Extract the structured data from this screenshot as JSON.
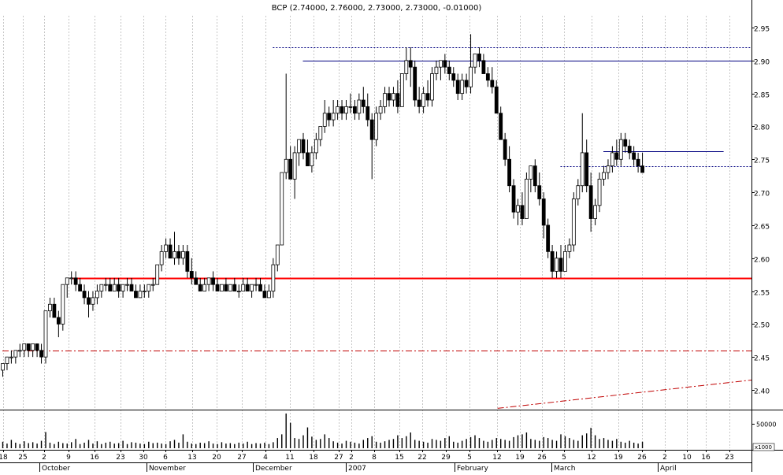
{
  "chart_data": {
    "type": "candlestick",
    "title": "BCP (2.74000, 2.76000, 2.73000, 2.73000, -0.01000)",
    "price_axis": {
      "ylim": [
        2.365,
        2.99
      ],
      "ticks": [
        "2.40",
        "2.45",
        "2.50",
        "2.55",
        "2.60",
        "2.65",
        "2.70",
        "2.75",
        "2.80",
        "2.85",
        "2.90",
        "2.95"
      ]
    },
    "volume_axis": {
      "tick_label": "50000",
      "scale_label": "x1000",
      "max": 80000
    },
    "date_axis": {
      "day_labels": [
        "18",
        "25",
        "2",
        "9",
        "16",
        "23",
        "30",
        "6",
        "13",
        "20",
        "27",
        "4",
        "11",
        "18",
        "27",
        "2",
        "8",
        "15",
        "22",
        "29",
        "5",
        "12",
        "19",
        "26",
        "5",
        "12",
        "19",
        "26",
        "2",
        "10",
        "16",
        "23"
      ],
      "month_labels": [
        "October",
        "November",
        "December",
        "2007",
        "February",
        "March",
        "April"
      ]
    },
    "candles": [
      [
        2.43,
        2.44,
        2.42,
        2.44
      ],
      [
        2.44,
        2.45,
        2.43,
        2.45
      ],
      [
        2.45,
        2.46,
        2.44,
        2.45
      ],
      [
        2.45,
        2.46,
        2.44,
        2.46
      ],
      [
        2.46,
        2.47,
        2.45,
        2.46
      ],
      [
        2.46,
        2.47,
        2.45,
        2.47
      ],
      [
        2.47,
        2.47,
        2.45,
        2.46
      ],
      [
        2.46,
        2.47,
        2.45,
        2.47
      ],
      [
        2.47,
        2.47,
        2.45,
        2.46
      ],
      [
        2.46,
        2.47,
        2.44,
        2.45
      ],
      [
        2.45,
        2.52,
        2.44,
        2.52
      ],
      [
        2.52,
        2.54,
        2.51,
        2.53
      ],
      [
        2.53,
        2.54,
        2.51,
        2.51
      ],
      [
        2.51,
        2.52,
        2.48,
        2.5
      ],
      [
        2.5,
        2.56,
        2.49,
        2.56
      ],
      [
        2.56,
        2.57,
        2.54,
        2.57
      ],
      [
        2.57,
        2.58,
        2.56,
        2.57
      ],
      [
        2.57,
        2.58,
        2.55,
        2.56
      ],
      [
        2.56,
        2.57,
        2.55,
        2.55
      ],
      [
        2.55,
        2.56,
        2.53,
        2.54
      ],
      [
        2.54,
        2.55,
        2.51,
        2.53
      ],
      [
        2.53,
        2.55,
        2.52,
        2.54
      ],
      [
        2.54,
        2.56,
        2.53,
        2.55
      ],
      [
        2.55,
        2.56,
        2.54,
        2.56
      ],
      [
        2.56,
        2.57,
        2.55,
        2.56
      ],
      [
        2.56,
        2.57,
        2.55,
        2.55
      ],
      [
        2.55,
        2.57,
        2.55,
        2.56
      ],
      [
        2.56,
        2.57,
        2.54,
        2.55
      ],
      [
        2.55,
        2.56,
        2.54,
        2.56
      ],
      [
        2.56,
        2.57,
        2.55,
        2.56
      ],
      [
        2.56,
        2.57,
        2.55,
        2.55
      ],
      [
        2.55,
        2.56,
        2.54,
        2.54
      ],
      [
        2.54,
        2.56,
        2.54,
        2.55
      ],
      [
        2.55,
        2.56,
        2.54,
        2.55
      ],
      [
        2.55,
        2.56,
        2.54,
        2.56
      ],
      [
        2.56,
        2.57,
        2.55,
        2.56
      ],
      [
        2.56,
        2.59,
        2.56,
        2.59
      ],
      [
        2.59,
        2.62,
        2.58,
        2.61
      ],
      [
        2.61,
        2.63,
        2.6,
        2.62
      ],
      [
        2.62,
        2.63,
        2.6,
        2.6
      ],
      [
        2.6,
        2.64,
        2.59,
        2.61
      ],
      [
        2.61,
        2.62,
        2.59,
        2.6
      ],
      [
        2.6,
        2.62,
        2.59,
        2.61
      ],
      [
        2.61,
        2.62,
        2.57,
        2.58
      ],
      [
        2.58,
        2.6,
        2.56,
        2.57
      ],
      [
        2.57,
        2.58,
        2.56,
        2.56
      ],
      [
        2.56,
        2.57,
        2.55,
        2.55
      ],
      [
        2.55,
        2.57,
        2.55,
        2.56
      ],
      [
        2.56,
        2.57,
        2.55,
        2.57
      ],
      [
        2.57,
        2.58,
        2.55,
        2.56
      ],
      [
        2.56,
        2.57,
        2.55,
        2.55
      ],
      [
        2.55,
        2.56,
        2.55,
        2.56
      ],
      [
        2.56,
        2.57,
        2.55,
        2.55
      ],
      [
        2.55,
        2.56,
        2.55,
        2.56
      ],
      [
        2.56,
        2.57,
        2.55,
        2.55
      ],
      [
        2.55,
        2.56,
        2.54,
        2.55
      ],
      [
        2.55,
        2.57,
        2.55,
        2.56
      ],
      [
        2.56,
        2.57,
        2.55,
        2.55
      ],
      [
        2.55,
        2.56,
        2.54,
        2.56
      ],
      [
        2.56,
        2.57,
        2.55,
        2.56
      ],
      [
        2.56,
        2.57,
        2.55,
        2.55
      ],
      [
        2.55,
        2.56,
        2.54,
        2.54
      ],
      [
        2.54,
        2.56,
        2.54,
        2.55
      ],
      [
        2.55,
        2.6,
        2.54,
        2.59
      ],
      [
        2.59,
        2.62,
        2.58,
        2.62
      ],
      [
        2.62,
        2.73,
        2.62,
        2.73
      ],
      [
        2.73,
        2.88,
        2.72,
        2.75
      ],
      [
        2.75,
        2.77,
        2.72,
        2.72
      ],
      [
        2.72,
        2.77,
        2.69,
        2.76
      ],
      [
        2.76,
        2.78,
        2.74,
        2.78
      ],
      [
        2.78,
        2.79,
        2.75,
        2.76
      ],
      [
        2.76,
        2.78,
        2.74,
        2.74
      ],
      [
        2.74,
        2.77,
        2.73,
        2.76
      ],
      [
        2.76,
        2.79,
        2.75,
        2.78
      ],
      [
        2.78,
        2.8,
        2.77,
        2.8
      ],
      [
        2.8,
        2.84,
        2.79,
        2.82
      ],
      [
        2.82,
        2.83,
        2.8,
        2.81
      ],
      [
        2.81,
        2.84,
        2.8,
        2.82
      ],
      [
        2.82,
        2.84,
        2.81,
        2.83
      ],
      [
        2.83,
        2.84,
        2.81,
        2.82
      ],
      [
        2.82,
        2.84,
        2.81,
        2.83
      ],
      [
        2.83,
        2.85,
        2.82,
        2.83
      ],
      [
        2.83,
        2.84,
        2.81,
        2.82
      ],
      [
        2.82,
        2.85,
        2.81,
        2.84
      ],
      [
        2.84,
        2.86,
        2.82,
        2.83
      ],
      [
        2.83,
        2.85,
        2.8,
        2.81
      ],
      [
        2.81,
        2.82,
        2.72,
        2.78
      ],
      [
        2.78,
        2.83,
        2.77,
        2.82
      ],
      [
        2.82,
        2.84,
        2.81,
        2.83
      ],
      [
        2.83,
        2.86,
        2.82,
        2.85
      ],
      [
        2.85,
        2.86,
        2.83,
        2.84
      ],
      [
        2.84,
        2.86,
        2.83,
        2.85
      ],
      [
        2.85,
        2.87,
        2.82,
        2.83
      ],
      [
        2.83,
        2.88,
        2.83,
        2.88
      ],
      [
        2.88,
        2.92,
        2.87,
        2.9
      ],
      [
        2.9,
        2.92,
        2.86,
        2.89
      ],
      [
        2.89,
        2.9,
        2.83,
        2.84
      ],
      [
        2.84,
        2.86,
        2.82,
        2.83
      ],
      [
        2.83,
        2.86,
        2.82,
        2.85
      ],
      [
        2.85,
        2.87,
        2.83,
        2.84
      ],
      [
        2.84,
        2.89,
        2.83,
        2.88
      ],
      [
        2.88,
        2.9,
        2.87,
        2.89
      ],
      [
        2.89,
        2.9,
        2.87,
        2.9
      ],
      [
        2.9,
        2.91,
        2.88,
        2.89
      ],
      [
        2.89,
        2.9,
        2.87,
        2.88
      ],
      [
        2.88,
        2.89,
        2.86,
        2.87
      ],
      [
        2.87,
        2.88,
        2.84,
        2.85
      ],
      [
        2.85,
        2.88,
        2.84,
        2.87
      ],
      [
        2.87,
        2.88,
        2.85,
        2.86
      ],
      [
        2.86,
        2.94,
        2.85,
        2.89
      ],
      [
        2.89,
        2.91,
        2.88,
        2.91
      ],
      [
        2.91,
        2.92,
        2.89,
        2.9
      ],
      [
        2.9,
        2.91,
        2.88,
        2.88
      ],
      [
        2.88,
        2.89,
        2.86,
        2.87
      ],
      [
        2.87,
        2.89,
        2.85,
        2.86
      ],
      [
        2.86,
        2.87,
        2.82,
        2.82
      ],
      [
        2.82,
        2.83,
        2.78,
        2.78
      ],
      [
        2.78,
        2.79,
        2.74,
        2.75
      ],
      [
        2.75,
        2.77,
        2.7,
        2.71
      ],
      [
        2.71,
        2.72,
        2.66,
        2.67
      ],
      [
        2.67,
        2.69,
        2.65,
        2.68
      ],
      [
        2.68,
        2.7,
        2.65,
        2.66
      ],
      [
        2.66,
        2.73,
        2.66,
        2.72
      ],
      [
        2.72,
        2.74,
        2.7,
        2.74
      ],
      [
        2.74,
        2.75,
        2.7,
        2.71
      ],
      [
        2.71,
        2.73,
        2.68,
        2.69
      ],
      [
        2.69,
        2.7,
        2.63,
        2.65
      ],
      [
        2.65,
        2.66,
        2.6,
        2.61
      ],
      [
        2.61,
        2.62,
        2.57,
        2.58
      ],
      [
        2.58,
        2.61,
        2.57,
        2.6
      ],
      [
        2.6,
        2.62,
        2.57,
        2.58
      ],
      [
        2.58,
        2.62,
        2.58,
        2.61
      ],
      [
        2.61,
        2.63,
        2.6,
        2.62
      ],
      [
        2.62,
        2.7,
        2.61,
        2.69
      ],
      [
        2.69,
        2.72,
        2.68,
        2.71
      ],
      [
        2.71,
        2.82,
        2.7,
        2.76
      ],
      [
        2.76,
        2.78,
        2.7,
        2.71
      ],
      [
        2.71,
        2.73,
        2.64,
        2.66
      ],
      [
        2.66,
        2.69,
        2.65,
        2.68
      ],
      [
        2.68,
        2.73,
        2.67,
        2.72
      ],
      [
        2.72,
        2.74,
        2.71,
        2.73
      ],
      [
        2.73,
        2.75,
        2.72,
        2.74
      ],
      [
        2.74,
        2.77,
        2.73,
        2.76
      ],
      [
        2.76,
        2.78,
        2.74,
        2.75
      ],
      [
        2.75,
        2.79,
        2.74,
        2.78
      ],
      [
        2.78,
        2.79,
        2.76,
        2.77
      ],
      [
        2.77,
        2.78,
        2.75,
        2.76
      ],
      [
        2.76,
        2.77,
        2.74,
        2.75
      ],
      [
        2.75,
        2.76,
        2.73,
        2.74
      ],
      [
        2.74,
        2.76,
        2.73,
        2.73
      ]
    ],
    "volume": [
      14000,
      10000,
      18000,
      12000,
      9000,
      15000,
      11000,
      13000,
      10000,
      16000,
      35000,
      12000,
      9000,
      14000,
      11000,
      10000,
      13000,
      20000,
      9000,
      12000,
      18000,
      10000,
      15000,
      9000,
      12000,
      14000,
      10000,
      11000,
      16000,
      9000,
      13000,
      12000,
      10000,
      9000,
      14000,
      11000,
      12000,
      10000,
      9000,
      15000,
      18000,
      12000,
      30000,
      14000,
      10000,
      9000,
      12000,
      11000,
      15000,
      10000,
      9000,
      13000,
      10000,
      11000,
      9000,
      12000,
      10000,
      14000,
      9000,
      11000,
      10000,
      12000,
      9000,
      13000,
      22000,
      30000,
      75000,
      55000,
      22000,
      20000,
      28000,
      45000,
      25000,
      18000,
      20000,
      30000,
      22000,
      15000,
      12000,
      10000,
      16000,
      14000,
      12000,
      10000,
      18000,
      22000,
      26000,
      14000,
      12000,
      15000,
      18000,
      20000,
      28000,
      22000,
      26000,
      34000,
      18000,
      16000,
      14000,
      12000,
      20000,
      18000,
      16000,
      22000,
      26000,
      14000,
      12000,
      16000,
      20000,
      24000,
      28000,
      22000,
      16000,
      14000,
      18000,
      22000,
      20000,
      18000,
      16000,
      24000,
      28000,
      30000,
      34000,
      20000,
      18000,
      16000,
      24000,
      22000,
      18000,
      16000,
      30000,
      26000,
      22000,
      18000,
      16000,
      28000,
      32000,
      44000,
      28000,
      20000,
      22000,
      18000,
      16000,
      20000,
      14000,
      12000,
      16000,
      12000,
      10000,
      14000
    ],
    "reference_lines": [
      {
        "type": "support",
        "value": 2.57,
        "color": "#ff0000",
        "style": "solid",
        "from": 16
      },
      {
        "type": "resistance",
        "value": 2.9,
        "color": "#000080",
        "style": "solid",
        "from": 70
      },
      {
        "type": "resistance",
        "value": 2.92,
        "color": "#000080",
        "style": "dotted",
        "from": 63
      },
      {
        "type": "resistance",
        "value": 2.762,
        "color": "#000080",
        "style": "solid",
        "from": 140,
        "to": 168
      },
      {
        "type": "resistance",
        "value": 2.74,
        "color": "#000080",
        "style": "dotted",
        "from": 130
      },
      {
        "type": "support",
        "value": 2.46,
        "color": "#c00000",
        "style": "dashdot",
        "from": 0
      }
    ],
    "trend_line": {
      "color": "#c00000",
      "style": "dashdot",
      "start": [
        97,
        2.372
      ],
      "end": [
        170,
        2.415
      ]
    },
    "grid": true,
    "colors": {
      "bull": "#ffffff",
      "bear": "#000000",
      "grid": "#a0a0a0"
    }
  }
}
